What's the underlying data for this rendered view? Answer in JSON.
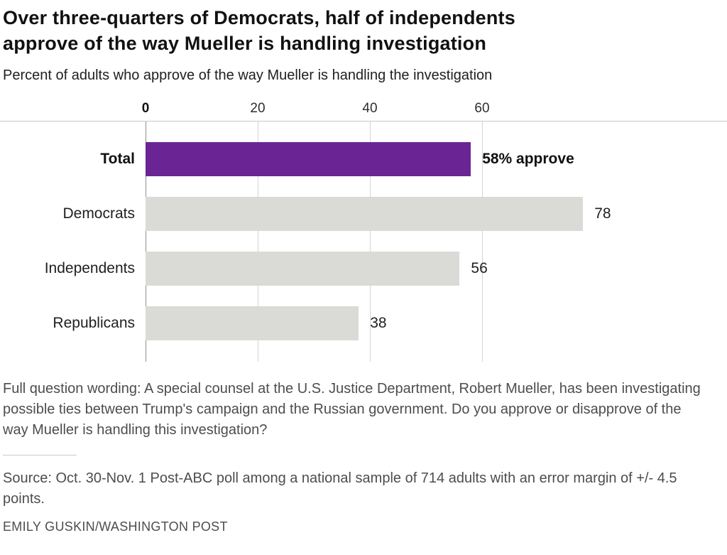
{
  "header": {
    "title_lines": [
      "Over three-quarters of Democrats, half of independents",
      "approve of the way Mueller is handling investigation"
    ],
    "subtitle": "Percent of adults who approve of the way Mueller is handling the investigation"
  },
  "chart_data": {
    "type": "bar",
    "orientation": "horizontal",
    "title": "Over three-quarters of Democrats, half of independents approve of the way Mueller is handling investigation",
    "subtitle": "Percent of adults who approve of the way Mueller is handling the investigation",
    "categories": [
      "Total",
      "Democrats",
      "Independents",
      "Republicans"
    ],
    "values": [
      58,
      78,
      56,
      38
    ],
    "value_labels": [
      "58% approve",
      "78",
      "56",
      "38"
    ],
    "x_ticks": [
      0,
      20,
      40,
      60
    ],
    "x_tick_labels": [
      "0",
      "20",
      "40",
      "60"
    ],
    "xlim": [
      0,
      100
    ],
    "bar_colors": [
      "#6b2494",
      "#dadad6",
      "#dadad6",
      "#dadad6"
    ],
    "highlight_color": "#6b2494",
    "default_bar_color": "#dadad6",
    "grid": "vertical",
    "legend": "none"
  },
  "footer": {
    "question": "Full question wording: A special counsel at the U.S. Justice Department, Robert Mueller, has been investigating possible ties between Trump's campaign and the Russian government. Do you approve or disapprove of the way Mueller is handling this investigation?",
    "source": "Source: Oct. 30-Nov. 1 Post-ABC poll among a national sample of 714 adults with an error margin of +/- 4.5 points.",
    "credit": "EMILY GUSKIN/WASHINGTON POST"
  }
}
